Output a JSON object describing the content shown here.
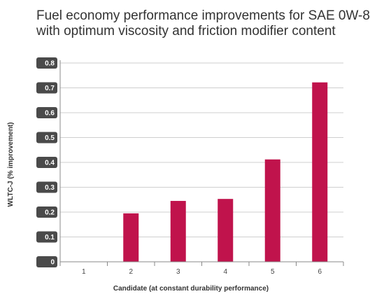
{
  "chart_data": {
    "type": "bar",
    "title_lines": [
      "Fuel economy performance improvements for SAE 0W-8",
      "with optimum viscosity and friction modifier content"
    ],
    "xlabel": "Candidate (at constant durability performance)",
    "ylabel": "WLTC-J (% improvement)",
    "categories": [
      "1",
      "2",
      "3",
      "4",
      "5",
      "6"
    ],
    "values": [
      0,
      0.195,
      0.245,
      0.253,
      0.412,
      0.722
    ],
    "ylim": [
      0,
      0.8
    ],
    "yticks": [
      "0",
      "0.1",
      "0.2",
      "0.3",
      "0.4",
      "0.5",
      "0.6",
      "0.7",
      "0.8"
    ],
    "grid": true,
    "bar_color": "#c0134c",
    "tick_badge_color": "#4a4a4a"
  }
}
